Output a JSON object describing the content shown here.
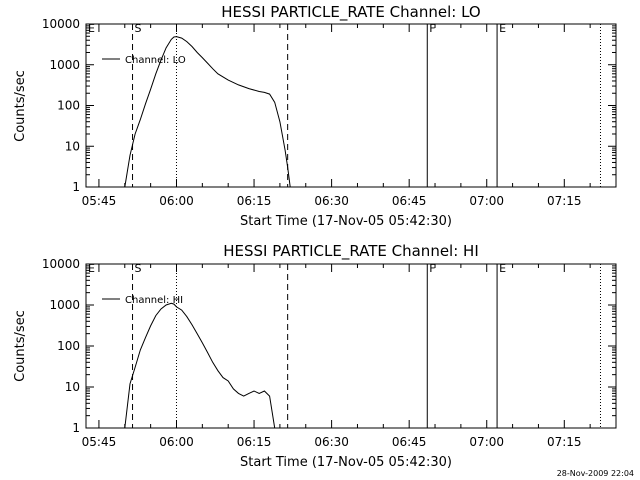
{
  "footer": "28-Nov-2009 22:04",
  "chart_data": [
    {
      "type": "line",
      "title": "HESSI PARTICLE_RATE Channel: LO",
      "xlabel": "Start Time (17-Nov-05 05:42:30)",
      "ylabel": "Counts/sec",
      "y_scale": "log",
      "xlim": [
        "05:42:30",
        "07:25:00"
      ],
      "ylim": [
        1,
        10000
      ],
      "x_ticks": [
        "05:45",
        "06:00",
        "06:15",
        "06:30",
        "06:45",
        "07:00",
        "07:15"
      ],
      "y_ticks": [
        "1",
        "10",
        "100",
        "1000",
        "10000"
      ],
      "legend": "top-left",
      "markers": [
        {
          "label": "E",
          "x": "05:42:30",
          "style": "none"
        },
        {
          "label": "S",
          "x": "05:51:30",
          "style": "dashed"
        },
        {
          "label": "",
          "x": "06:00",
          "style": "dotted"
        },
        {
          "label": "",
          "x": "06:21:30",
          "style": "dashed"
        },
        {
          "label": "F",
          "x": "06:48:30",
          "style": "solid"
        },
        {
          "label": "E",
          "x": "07:02:00",
          "style": "solid"
        },
        {
          "label": "",
          "x": "07:22:00",
          "style": "dotted"
        }
      ],
      "series": [
        {
          "name": "Channel: LO",
          "x": [
            "05:50:00",
            "05:51:00",
            "05:52:00",
            "05:53:00",
            "05:54:00",
            "05:55:00",
            "05:56:00",
            "05:57:00",
            "05:58:00",
            "05:59:00",
            "05:59:30",
            "06:00:00",
            "06:01:00",
            "06:02:00",
            "06:03:00",
            "06:04:00",
            "06:05:00",
            "06:06:00",
            "06:07:00",
            "06:08:00",
            "06:10:00",
            "06:12:00",
            "06:14:00",
            "06:16:00",
            "06:17:00",
            "06:18:00",
            "06:19:00",
            "06:20:00",
            "06:21:00",
            "06:21:30",
            "06:22:00"
          ],
          "y": [
            1,
            6,
            20,
            45,
            110,
            250,
            600,
            1300,
            2600,
            4200,
            4800,
            4900,
            4500,
            3700,
            2800,
            2000,
            1500,
            1100,
            800,
            600,
            420,
            320,
            260,
            220,
            210,
            190,
            120,
            40,
            8,
            3,
            1
          ]
        }
      ]
    },
    {
      "type": "line",
      "title": "HESSI PARTICLE_RATE Channel: HI",
      "xlabel": "Start Time (17-Nov-05 05:42:30)",
      "ylabel": "Counts/sec",
      "y_scale": "log",
      "xlim": [
        "05:42:30",
        "07:25:00"
      ],
      "ylim": [
        1,
        10000
      ],
      "x_ticks": [
        "05:45",
        "06:00",
        "06:15",
        "06:30",
        "06:45",
        "07:00",
        "07:15"
      ],
      "y_ticks": [
        "1",
        "10",
        "100",
        "1000",
        "10000"
      ],
      "legend": "top-left",
      "markers": [
        {
          "label": "E",
          "x": "05:42:30",
          "style": "none"
        },
        {
          "label": "S",
          "x": "05:51:30",
          "style": "dashed"
        },
        {
          "label": "",
          "x": "06:00",
          "style": "dotted"
        },
        {
          "label": "",
          "x": "06:21:30",
          "style": "dashed"
        },
        {
          "label": "F",
          "x": "06:48:30",
          "style": "solid"
        },
        {
          "label": "E",
          "x": "07:02:00",
          "style": "solid"
        },
        {
          "label": "",
          "x": "07:22:00",
          "style": "dotted"
        }
      ],
      "series": [
        {
          "name": "Channel: HI",
          "x": [
            "05:50:00",
            "05:51:00",
            "05:52:00",
            "05:53:00",
            "05:54:00",
            "05:55:00",
            "05:56:00",
            "05:57:00",
            "05:58:00",
            "05:59:00",
            "05:59:30",
            "06:00:00",
            "06:01:00",
            "06:02:00",
            "06:03:00",
            "06:04:00",
            "06:05:00",
            "06:06:00",
            "06:07:00",
            "06:08:00",
            "06:09:00",
            "06:10:00",
            "06:11:00",
            "06:12:00",
            "06:13:00",
            "06:14:00",
            "06:15:00",
            "06:16:00",
            "06:17:00",
            "06:18:00",
            "06:19:00"
          ],
          "y": [
            1,
            12,
            30,
            80,
            160,
            310,
            550,
            800,
            1000,
            1100,
            1050,
            900,
            750,
            520,
            330,
            200,
            120,
            70,
            40,
            25,
            17,
            14,
            9,
            7,
            6,
            7,
            8,
            7,
            8,
            6,
            1
          ]
        }
      ]
    }
  ]
}
